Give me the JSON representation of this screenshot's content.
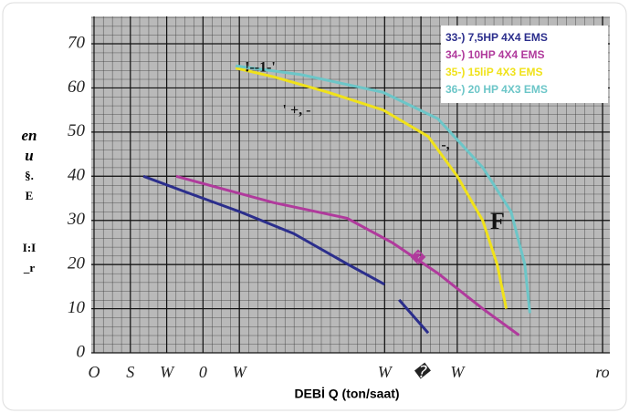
{
  "chart_data": {
    "type": "line",
    "xlabel": "DEBİ  Q (ton/saat)",
    "ylabel": [
      "en",
      "u",
      "§.",
      "E",
      "I:I",
      "_r"
    ],
    "annotations": [
      "!--1-'",
      "' +, -",
      "-,",
      "F",
      "�"
    ],
    "xlim": [
      0,
      140
    ],
    "ylim": [
      0,
      70
    ],
    "xticks": [
      {
        "value": 0,
        "label": "O"
      },
      {
        "value": 10,
        "label": "S"
      },
      {
        "value": 20,
        "label": "W"
      },
      {
        "value": 30,
        "label": "0"
      },
      {
        "value": 40,
        "label": "W"
      },
      {
        "value": 80,
        "label": "W"
      },
      {
        "value": 90,
        "label": "�"
      },
      {
        "value": 100,
        "label": "W"
      },
      {
        "value": 140,
        "label": "ro"
      }
    ],
    "yticks": [
      0,
      10,
      20,
      30,
      40,
      50,
      60,
      70
    ],
    "grid": true,
    "legend": "top-right",
    "series": [
      {
        "name": "33-) 7,5HP  4X4  EMS",
        "color": "#2b2e8c",
        "x": [
          13.6,
          25,
          40,
          55,
          70,
          80,
          null,
          84,
          92
        ],
        "values": [
          40,
          36.5,
          32,
          27,
          20,
          15.5,
          null,
          12,
          4.5
        ]
      },
      {
        "name": "34-)  10HP  4X4  EMS",
        "color": "#b03a9c",
        "x": [
          22.6,
          49.5,
          69.6,
          82,
          94.7,
          107,
          117
        ],
        "values": [
          40,
          34,
          30.5,
          25,
          18,
          10,
          4
        ]
      },
      {
        "name": "35-)  15liP  4X3  EMS",
        "color": "#f0e21a",
        "x": [
          39,
          49.5,
          64.5,
          79.6,
          92,
          100,
          107,
          111,
          113.5
        ],
        "values": [
          64.5,
          62.5,
          59,
          55,
          49,
          40,
          30,
          20,
          10
        ]
      },
      {
        "name": "36-)  20  HP  4X3  EMS",
        "color": "#6cc6c8",
        "x": [
          39,
          57,
          79.6,
          94.7,
          107,
          114.8,
          118.6,
          120
        ],
        "values": [
          65,
          63,
          59,
          53,
          42,
          32,
          20,
          9
        ]
      }
    ]
  }
}
